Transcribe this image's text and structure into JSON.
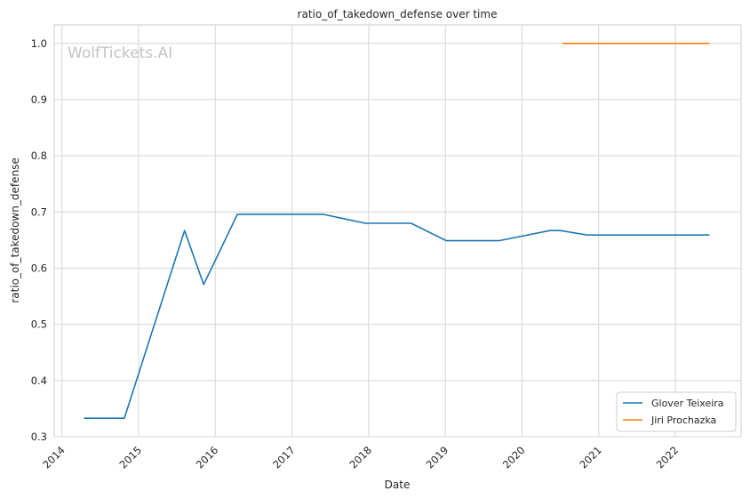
{
  "chart_data": {
    "type": "line",
    "title": "ratio_of_takedown_defense over time",
    "xlabel": "Date",
    "ylabel": "ratio_of_takedown_defense",
    "watermark": "WolfTickets.AI",
    "x_ticks": [
      "2014",
      "2015",
      "2016",
      "2017",
      "2018",
      "2019",
      "2020",
      "2021",
      "2022"
    ],
    "y_ticks": [
      "0.3",
      "0.4",
      "0.5",
      "0.6",
      "0.7",
      "0.8",
      "0.9",
      "1.0"
    ],
    "xlim": [
      "2013-11-25",
      "2022-11-10"
    ],
    "ylim": [
      0.3,
      1.033
    ],
    "grid": true,
    "legend_position": "lower-right",
    "series": [
      {
        "name": "Glover Teixeira",
        "color": "#1f77b4",
        "points": [
          [
            "2014-04-16",
            0.333
          ],
          [
            "2014-10-25",
            0.333
          ],
          [
            "2015-08-08",
            0.667
          ],
          [
            "2015-11-07",
            0.571
          ],
          [
            "2016-04-16",
            0.696
          ],
          [
            "2017-05-28",
            0.696
          ],
          [
            "2017-12-16",
            0.68
          ],
          [
            "2018-07-22",
            0.68
          ],
          [
            "2019-01-06",
            0.649
          ],
          [
            "2019-09-14",
            0.649
          ],
          [
            "2020-05-13",
            0.667
          ],
          [
            "2020-07-01",
            0.667
          ],
          [
            "2020-11-07",
            0.659
          ],
          [
            "2022-06-12",
            0.659
          ]
        ]
      },
      {
        "name": "Jiri Prochazka",
        "color": "#ff7f0e",
        "points": [
          [
            "2020-07-11",
            1.0
          ],
          [
            "2022-06-12",
            1.0
          ]
        ]
      }
    ]
  }
}
